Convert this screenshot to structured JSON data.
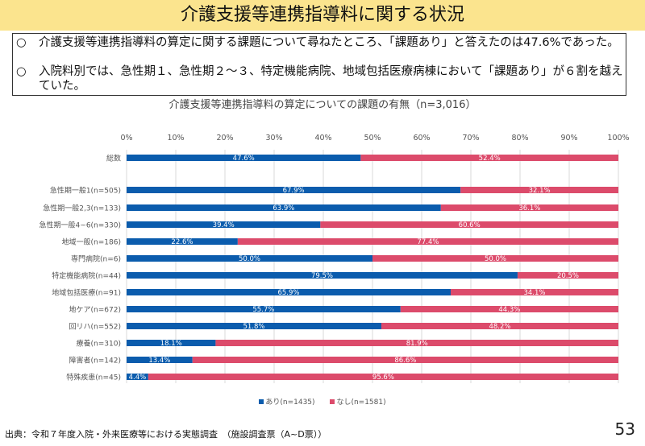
{
  "header": {
    "title": "介護支援等連携指導料に関する状況"
  },
  "summary": {
    "bullet_mark": "○",
    "items": [
      "介護支援等連携指導料の算定に関する課題について尋ねたところ、「課題あり」と答えたのは47.6%であった。",
      "入院料別では、急性期１、急性期２～３、特定機能病院、地域包括医療病棟において「課題あり」が６割を越えていた。"
    ]
  },
  "chart_data": {
    "type": "bar",
    "orientation": "horizontal",
    "stacked": "percent",
    "title": "介護支援等連携指導料の算定についての課題の有無（n=3,016）",
    "xlim": [
      0,
      100
    ],
    "x_ticks": [
      "0%",
      "10%",
      "20%",
      "30%",
      "40%",
      "50%",
      "60%",
      "70%",
      "80%",
      "90%",
      "100%"
    ],
    "grid": true,
    "legend_position": "bottom",
    "categories": [
      "総数",
      "急性期一般1(n=505)",
      "急性期一般2,3(n=133)",
      "急性期一般4~6(n=330)",
      "地域一般(n=186)",
      "専門病院(n=6)",
      "特定機能病院(n=44)",
      "地域包括医療(n=91)",
      "地ケア(n=672)",
      "回リハ(n=552)",
      "療養(n=310)",
      "障害者(n=142)",
      "特殊疾患(n=45)"
    ],
    "series": [
      {
        "name": "あり(n=1435)",
        "color": "#0B5CAD",
        "values": [
          47.6,
          67.9,
          63.9,
          39.4,
          22.6,
          50.0,
          79.5,
          65.9,
          55.7,
          51.8,
          18.1,
          13.4,
          4.4
        ],
        "labels": [
          "47.6%",
          "67.9%",
          "63.9%",
          "39.4%",
          "22.6%",
          "50.0%",
          "79.5%",
          "65.9%",
          "55.7%",
          "51.8%",
          "18.1%",
          "13.4%",
          "4.4%"
        ]
      },
      {
        "name": "なし(n=1581)",
        "color": "#DC4B6B",
        "values": [
          52.4,
          32.1,
          36.1,
          60.6,
          77.4,
          50.0,
          20.5,
          34.1,
          44.3,
          48.2,
          81.9,
          86.6,
          95.6
        ],
        "labels": [
          "52.4%",
          "32.1%",
          "36.1%",
          "60.6%",
          "77.4%",
          "50.0%",
          "20.5%",
          "34.1%",
          "44.3%",
          "48.2%",
          "81.9%",
          "86.6%",
          "95.6%"
        ]
      }
    ]
  },
  "footer": {
    "source": "出典：令和７年度入院・外来医療等における実態調査　（施設調査票（A~D票））",
    "page_number": "53"
  }
}
